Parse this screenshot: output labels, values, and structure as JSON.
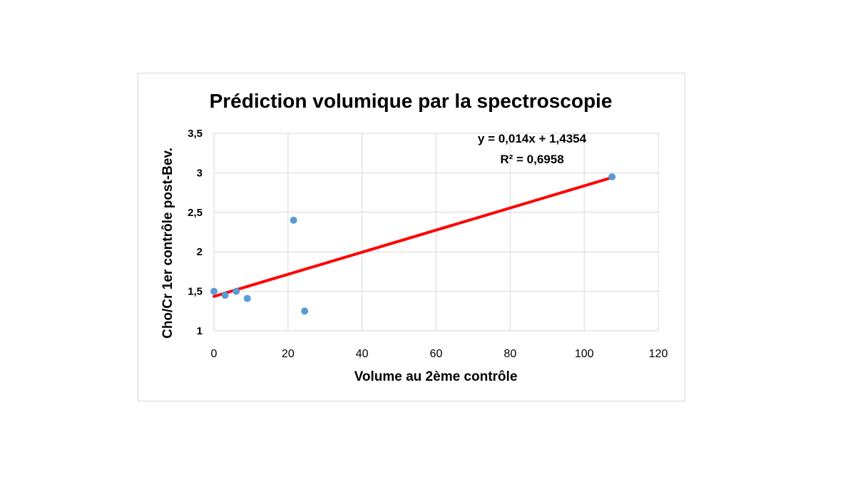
{
  "chart_data": {
    "type": "scatter",
    "title": "Prédiction volumique  par la spectroscopie",
    "xlabel": "Volume au 2ème contrôle",
    "ylabel": "Cho/Cr  1er contrôle post-Bev.",
    "xlim": [
      0,
      120
    ],
    "ylim": [
      1,
      3.5
    ],
    "x_ticks": [
      "0",
      "20",
      "40",
      "60",
      "80",
      "100",
      "120"
    ],
    "y_ticks": [
      "1",
      "1,5",
      "2",
      "2,5",
      "3",
      "3,5"
    ],
    "grid": true,
    "points": [
      {
        "x": 0,
        "y": 1.5
      },
      {
        "x": 3,
        "y": 1.45
      },
      {
        "x": 6,
        "y": 1.5
      },
      {
        "x": 9,
        "y": 1.41
      },
      {
        "x": 21.5,
        "y": 2.4
      },
      {
        "x": 24.5,
        "y": 1.25
      },
      {
        "x": 107.5,
        "y": 2.95
      }
    ],
    "trendline": {
      "type": "linear",
      "slope": 0.014,
      "intercept": 1.4354,
      "x_range": [
        0,
        107.5
      ],
      "equation": "y = 0,014x + 1,4354",
      "r_squared": "R² = 0,6958"
    },
    "colors": {
      "points": "#5b9bd5",
      "trendline": "#ff0000",
      "grid": "#d9d9d9"
    }
  }
}
